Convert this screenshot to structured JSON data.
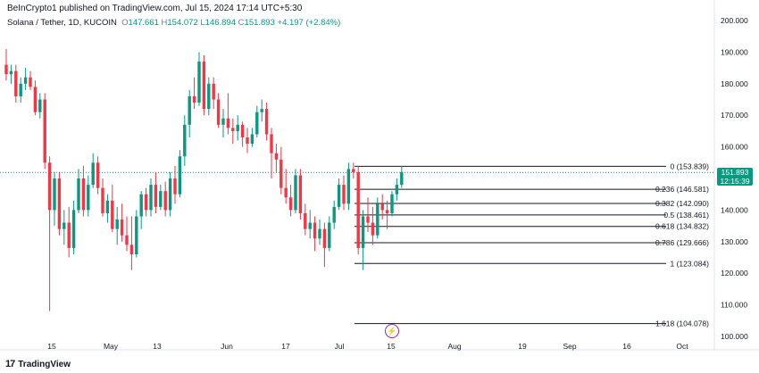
{
  "header": {
    "publisher": "BeInCrypto1 published on TradingView.com, Jul 15, 2024 17:14 UTC+5:30",
    "symbol": "Solana / Tether, 1D, KUCOIN",
    "open_label": "O",
    "open": "147.661",
    "high_label": "H",
    "high": "154.072",
    "low_label": "L",
    "low": "146.894",
    "close_label": "C",
    "close": "151.893",
    "change": "+4.197 (+2.84%)"
  },
  "price_tag": {
    "price": "151.893",
    "countdown": "12:15:39"
  },
  "footer": {
    "logo_text": "TradingView",
    "logo_mark": "17"
  },
  "event_icon": "lightning-icon",
  "colors": {
    "up": "#089981",
    "down": "#f23645",
    "fib": "#131722",
    "dotted": "#089981"
  },
  "chart_data": {
    "type": "candlestick",
    "ylim": [
      100,
      200
    ],
    "y_ticks": [
      "200.000",
      "190.000",
      "180.000",
      "170.000",
      "160.000",
      "150.000",
      "140.000",
      "130.000",
      "120.000",
      "110.000",
      "100.000"
    ],
    "x_ticks": [
      "15",
      "May",
      "13",
      "Jun",
      "17",
      "Jul",
      "15",
      "Aug",
      "19",
      "Sep",
      "16",
      "Oct"
    ],
    "fib_levels": [
      {
        "label": "0 (153.839)",
        "value": 153.839
      },
      {
        "label": "0.236 (146.581)",
        "value": 146.581
      },
      {
        "label": "0.382 (142.090)",
        "value": 142.09
      },
      {
        "label": "0.5 (138.461)",
        "value": 138.461
      },
      {
        "label": "0.618 (134.832)",
        "value": 134.832
      },
      {
        "label": "0.786 (129.666)",
        "value": 129.666
      },
      {
        "label": "1 (123.084)",
        "value": 123.084
      },
      {
        "label": "1.618 (104.078)",
        "value": 104.078
      }
    ],
    "candles": [
      [
        186,
        191,
        181,
        183
      ],
      [
        183,
        186,
        180,
        184
      ],
      [
        184,
        186,
        174,
        176
      ],
      [
        176,
        182,
        174,
        180
      ],
      [
        180,
        185,
        178,
        182
      ],
      [
        182,
        184,
        178,
        179
      ],
      [
        179,
        181,
        170,
        171
      ],
      [
        171,
        177,
        169,
        175
      ],
      [
        175,
        177,
        153,
        155
      ],
      [
        155,
        157,
        108,
        140
      ],
      [
        140,
        152,
        135,
        150
      ],
      [
        150,
        152,
        132,
        134
      ],
      [
        134,
        140,
        129,
        136
      ],
      [
        136,
        141,
        125,
        128
      ],
      [
        128,
        143,
        126,
        140
      ],
      [
        140,
        153,
        139,
        150
      ],
      [
        150,
        154,
        138,
        140
      ],
      [
        140,
        151,
        138,
        148
      ],
      [
        148,
        158,
        147,
        155
      ],
      [
        155,
        157,
        145,
        147
      ],
      [
        147,
        150,
        138,
        139
      ],
      [
        139,
        145,
        136,
        143
      ],
      [
        143,
        148,
        133,
        134
      ],
      [
        134,
        141,
        129,
        137
      ],
      [
        137,
        142,
        130,
        132
      ],
      [
        132,
        138,
        127,
        129
      ],
      [
        129,
        138,
        121,
        126
      ],
      [
        126,
        140,
        125,
        138
      ],
      [
        138,
        146,
        134,
        145
      ],
      [
        145,
        147,
        138,
        140
      ],
      [
        140,
        150,
        138,
        148
      ],
      [
        148,
        152,
        139,
        141
      ],
      [
        141,
        148,
        140,
        146
      ],
      [
        146,
        149,
        138,
        140
      ],
      [
        140,
        152,
        138,
        150
      ],
      [
        150,
        154,
        142,
        145
      ],
      [
        145,
        159,
        144,
        157
      ],
      [
        157,
        170,
        154,
        167
      ],
      [
        167,
        178,
        163,
        176
      ],
      [
        176,
        182,
        172,
        174
      ],
      [
        174,
        190,
        173,
        187
      ],
      [
        187,
        189,
        170,
        172
      ],
      [
        172,
        182,
        170,
        180
      ],
      [
        180,
        182,
        172,
        175
      ],
      [
        175,
        177,
        166,
        167
      ],
      [
        167,
        172,
        163,
        169
      ],
      [
        169,
        177,
        164,
        166
      ],
      [
        166,
        169,
        161,
        165
      ],
      [
        165,
        170,
        162,
        167
      ],
      [
        167,
        168,
        160,
        163
      ],
      [
        163,
        166,
        158,
        161
      ],
      [
        161,
        166,
        160,
        164
      ],
      [
        164,
        173,
        163,
        171
      ],
      [
        171,
        175,
        168,
        172
      ],
      [
        172,
        174,
        162,
        164
      ],
      [
        164,
        166,
        150,
        158
      ],
      [
        158,
        161,
        152,
        156
      ],
      [
        156,
        160,
        145,
        147
      ],
      [
        147,
        153,
        142,
        144
      ],
      [
        144,
        148,
        138,
        140
      ],
      [
        140,
        153,
        139,
        151
      ],
      [
        151,
        153,
        137,
        139
      ],
      [
        139,
        142,
        132,
        134
      ],
      [
        134,
        140,
        131,
        136
      ],
      [
        136,
        138,
        127,
        131
      ],
      [
        131,
        137,
        129,
        134
      ],
      [
        134,
        136,
        122,
        128
      ],
      [
        128,
        138,
        127,
        136
      ],
      [
        136,
        143,
        134,
        141
      ],
      [
        141,
        150,
        140,
        148
      ],
      [
        148,
        151,
        140,
        142
      ],
      [
        142,
        155,
        140,
        153
      ],
      [
        153,
        155,
        150,
        152
      ],
      [
        152,
        154,
        126,
        128
      ],
      [
        128,
        140,
        121,
        138
      ],
      [
        138,
        144,
        133,
        136
      ],
      [
        136,
        141,
        129,
        132
      ],
      [
        132,
        144,
        131,
        142
      ],
      [
        142,
        145,
        137,
        140
      ],
      [
        140,
        143,
        134,
        139
      ],
      [
        139,
        146,
        138,
        145
      ],
      [
        145,
        150,
        143,
        148
      ],
      [
        148,
        154,
        147,
        152
      ]
    ]
  }
}
